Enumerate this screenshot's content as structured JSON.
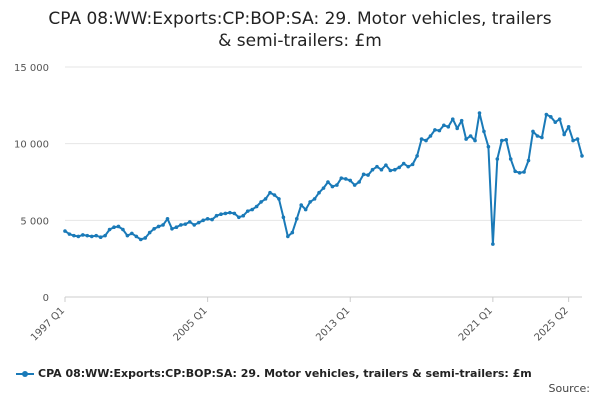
{
  "chart_data": {
    "type": "line",
    "title_line1": "CPA 08:WW:Exports:CP:BOP:SA: 29. Motor vehicles, trailers",
    "title_line2": "& semi-trailers: £m",
    "xlabel": "",
    "ylabel": "",
    "ylim": [
      0,
      15000
    ],
    "yticks": [
      0,
      5000,
      10000,
      15000
    ],
    "ytick_labels": [
      "0",
      "5 000",
      "10 000",
      "15 000"
    ],
    "xticks": [
      "1997 Q1",
      "2005 Q1",
      "2013 Q1",
      "2021 Q1",
      "2025 Q2"
    ],
    "start_period": "1997 Q1",
    "grid": true,
    "legend_position": "bottom",
    "color": "#1a7ab8",
    "series": [
      {
        "name": "CPA 08:WW:Exports:CP:BOP:SA: 29. Motor vehicles, trailers & semi-trailers: £m",
        "values": [
          4300,
          4100,
          4000,
          3950,
          4050,
          4000,
          3950,
          4000,
          3900,
          4000,
          4400,
          4550,
          4600,
          4400,
          4000,
          4150,
          3950,
          3750,
          3850,
          4200,
          4450,
          4600,
          4700,
          5100,
          4450,
          4550,
          4700,
          4750,
          4900,
          4700,
          4850,
          5000,
          5100,
          5050,
          5300,
          5400,
          5450,
          5500,
          5450,
          5200,
          5300,
          5600,
          5700,
          5900,
          6200,
          6400,
          6800,
          6650,
          6400,
          5200,
          3950,
          4200,
          5100,
          6000,
          5700,
          6200,
          6400,
          6800,
          7100,
          7500,
          7200,
          7300,
          7750,
          7700,
          7600,
          7300,
          7500,
          8000,
          7950,
          8300,
          8500,
          8300,
          8600,
          8250,
          8300,
          8450,
          8700,
          8500,
          8650,
          9200,
          10300,
          10200,
          10500,
          10900,
          10850,
          11200,
          11100,
          11600,
          11000,
          11500,
          10300,
          10500,
          10200,
          12000,
          10800,
          9800,
          3450,
          9000,
          10200,
          10250,
          9000,
          8200,
          8100,
          8150,
          8900,
          10800,
          10500,
          10400,
          11900,
          11750,
          11400,
          11600,
          10600,
          11100,
          10200,
          10300,
          9200
        ]
      }
    ]
  },
  "legend": {
    "label": "CPA 08:WW:Exports:CP:BOP:SA: 29. Motor vehicles, trailers & semi-trailers: £m"
  },
  "source": {
    "label": "Source:"
  }
}
